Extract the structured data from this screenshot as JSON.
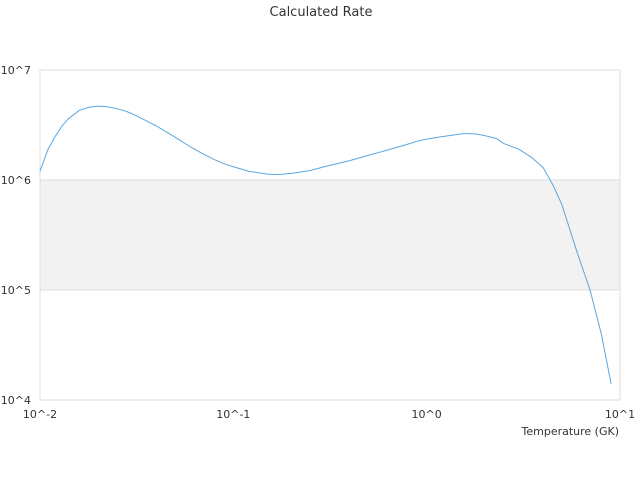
{
  "chart_data": {
    "type": "line",
    "title": "Calculated Rate",
    "xlabel": "Temperature (GK)",
    "ylabel": "",
    "x_scale": "log",
    "y_scale": "log",
    "xlim": [
      0.01,
      10
    ],
    "ylim": [
      10000,
      10000000
    ],
    "x_ticks": [
      "10^-2",
      "10^-1",
      "10^0",
      "10^1"
    ],
    "y_ticks": [
      "10^4",
      "10^5",
      "10^6",
      "10^7"
    ],
    "grid": true,
    "legend": "none",
    "colors": {
      "series": "#5aa6e0",
      "band": "#f2f2f2",
      "grid": "#dddddd"
    },
    "series": [
      {
        "x": [
          0.01,
          0.011,
          0.012,
          0.013,
          0.014,
          0.016,
          0.018,
          0.02,
          0.022,
          0.025,
          0.028,
          0.03,
          0.035,
          0.04,
          0.05,
          0.06,
          0.07,
          0.08,
          0.09,
          0.1,
          0.12,
          0.15,
          0.17,
          0.2,
          0.25,
          0.3,
          0.4,
          0.5,
          0.6,
          0.7,
          0.8,
          0.9,
          1.0,
          1.2,
          1.5,
          1.6,
          1.8,
          2.0,
          2.3,
          2.5,
          3.0,
          3.5,
          4.0,
          4.5,
          5.0,
          6.0,
          7.0,
          8.0,
          9.0
        ],
        "y": [
          1200000,
          1900000,
          2500000,
          3100000,
          3600000,
          4300000,
          4600000,
          4700000,
          4650000,
          4450000,
          4200000,
          4000000,
          3500000,
          3100000,
          2450000,
          2000000,
          1720000,
          1530000,
          1400000,
          1320000,
          1200000,
          1130000,
          1120000,
          1150000,
          1220000,
          1330000,
          1500000,
          1680000,
          1830000,
          1980000,
          2120000,
          2260000,
          2350000,
          2480000,
          2620000,
          2650000,
          2620000,
          2530000,
          2380000,
          2150000,
          1900000,
          1600000,
          1300000,
          900000,
          600000,
          220000,
          100000,
          40000,
          14000
        ]
      }
    ]
  }
}
